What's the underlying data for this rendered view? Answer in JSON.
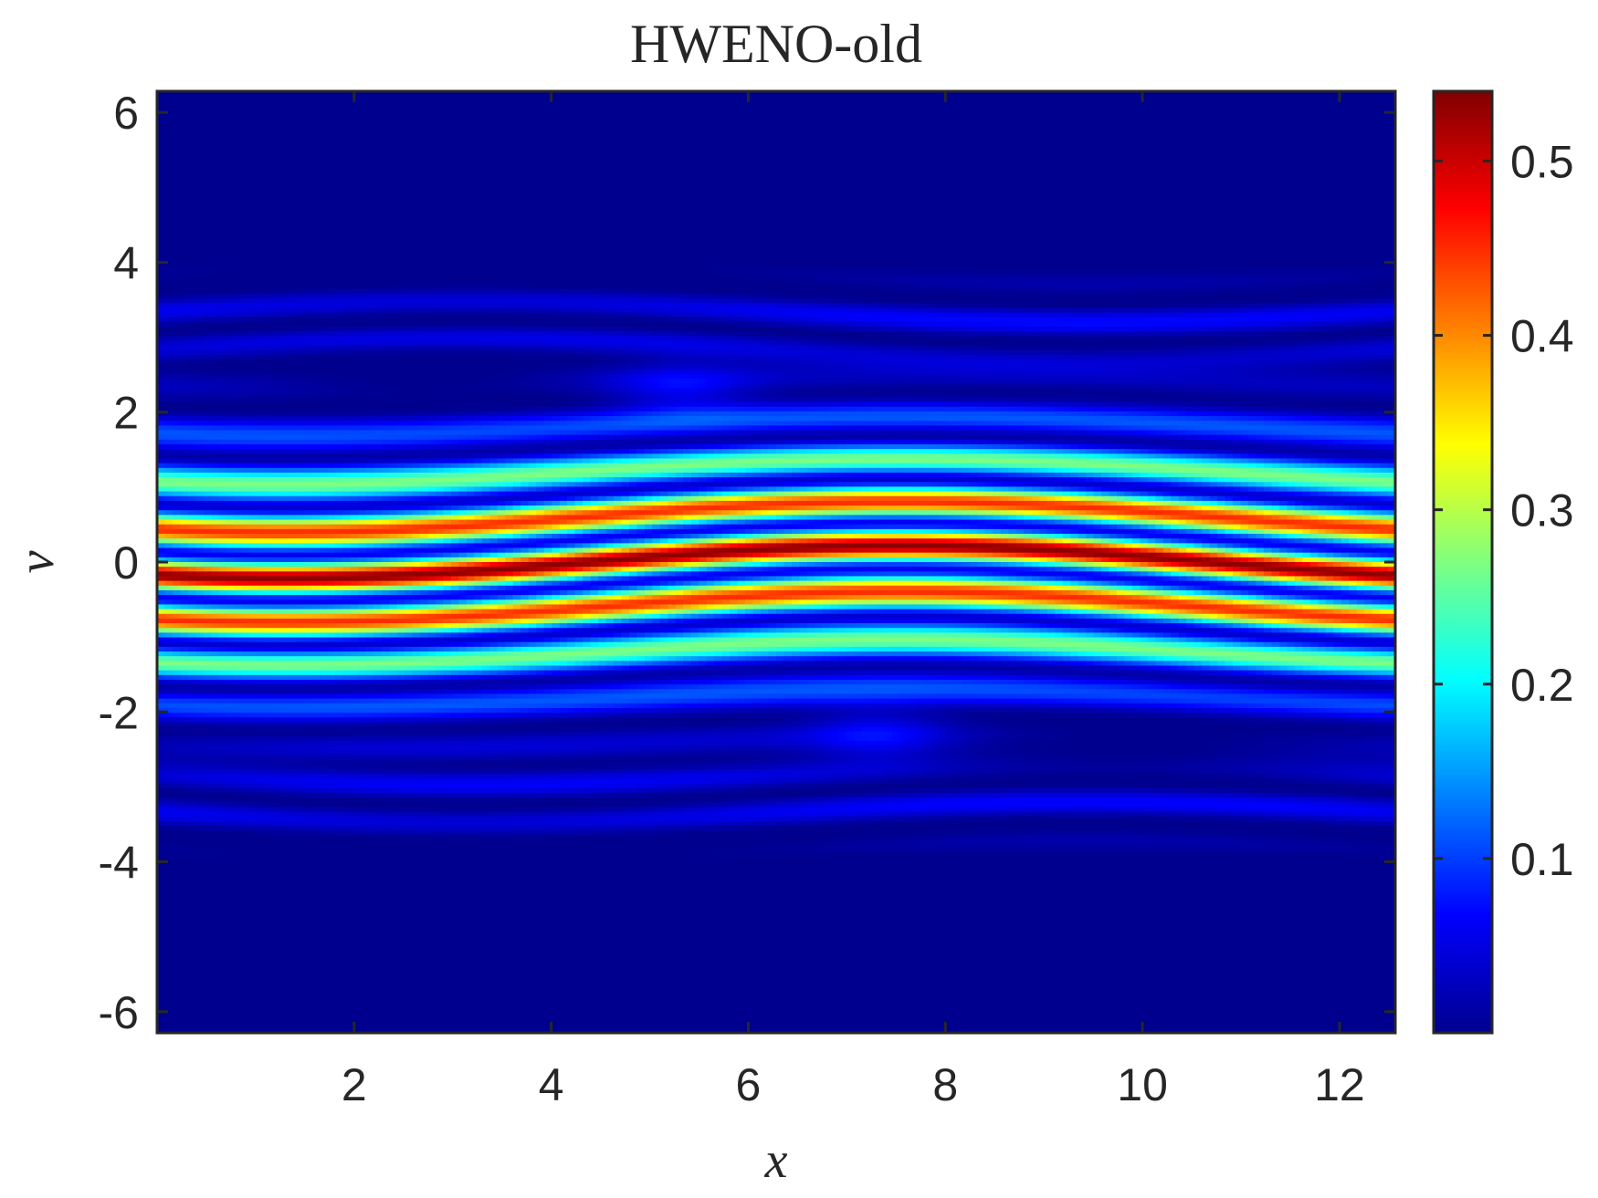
{
  "chart_data": {
    "type": "heatmap",
    "title": "HWENO-old",
    "xlabel": "x",
    "ylabel": "v",
    "xlim": [
      0,
      12.566
    ],
    "ylim": [
      -6.283,
      6.283
    ],
    "x_ticks": [
      2,
      4,
      6,
      8,
      10,
      12
    ],
    "y_ticks": [
      -6,
      -4,
      -2,
      0,
      2,
      4,
      6
    ],
    "colorbar": {
      "colormap": "jet",
      "range": [
        0,
        0.54
      ],
      "ticks": [
        0.1,
        0.2,
        0.3,
        0.4,
        0.5
      ]
    },
    "description_of_field": "distribution function f(x,v): banded filaments near v=0 with max about 0.54, twisted trapping vortices near v≈±2.5, zero for |v|>4",
    "grid": false
  }
}
